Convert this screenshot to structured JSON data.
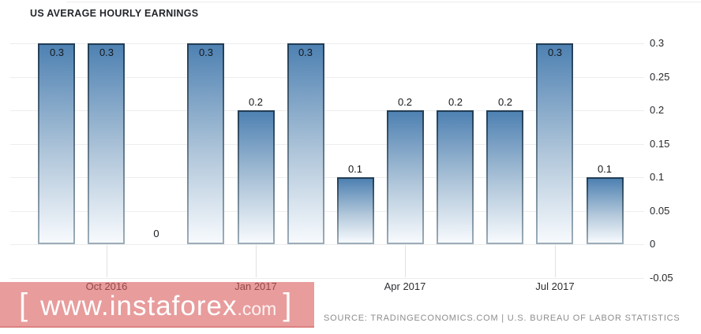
{
  "title": "US AVERAGE HOURLY EARNINGS",
  "chart_data": {
    "type": "bar",
    "title": "US AVERAGE HOURLY EARNINGS",
    "values": [
      0.3,
      0.3,
      0,
      0.3,
      0.2,
      0.3,
      0.1,
      0.2,
      0.2,
      0.2,
      0.3,
      0.1
    ],
    "bar_value_labels": [
      "0.3",
      "0.3",
      "0",
      "0.3",
      "0.2",
      "0.3",
      "0.1",
      "0.2",
      "0.2",
      "0.2",
      "0.3",
      "0.1"
    ],
    "x_tick_labels": [
      {
        "label": "Oct 2016",
        "bar_index": 1
      },
      {
        "label": "Jan 2017",
        "bar_index": 4
      },
      {
        "label": "Apr 2017",
        "bar_index": 7
      },
      {
        "label": "Jul 2017",
        "bar_index": 10
      }
    ],
    "y_axis": {
      "side": "right",
      "tick_labels": [
        "0.3",
        "0.25",
        "0.2",
        "0.15",
        "0.1",
        "0.05",
        "0",
        "-0.05"
      ],
      "tick_values": [
        0.3,
        0.25,
        0.2,
        0.15,
        0.1,
        0.05,
        0,
        -0.05
      ],
      "range": [
        -0.05,
        0.3
      ]
    },
    "grid": "horizontal",
    "legend": "none",
    "colors": {
      "bar_top": "#4e81b2",
      "bar_bottom": "#f7fafd",
      "bar_border_top": "#203c54",
      "bar_border_bottom": "#9cadb9",
      "gridline": "#ededed",
      "value_label": "#14181c",
      "axis_label": "#26292d"
    }
  },
  "watermark": {
    "bracket_left": "[",
    "url_main": "www.instaforex",
    "url_tld": ".com",
    "bracket_right": "]",
    "band_color": "#e99c9c",
    "text_color": "#ffffff"
  },
  "source_line": "SOURCE: TRADINGECONOMICS.COM | U.S. BUREAU OF LABOR STATISTICS"
}
